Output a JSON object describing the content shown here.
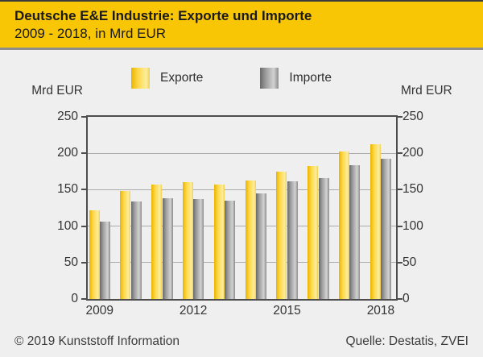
{
  "header": {
    "title": "Deutsche E&E Industrie: Exporte und Importe",
    "subtitle": "2009 - 2018, in Mrd EUR"
  },
  "legend": {
    "items": [
      {
        "label": "Exporte",
        "swatch": "exporte-swatch"
      },
      {
        "label": "Importe",
        "swatch": "importe-swatch"
      }
    ]
  },
  "axis": {
    "unit_left": "Mrd EUR",
    "unit_right": "Mrd EUR"
  },
  "footer": {
    "copyright": "© 2019 Kunststoff Information",
    "source": "Quelle: Destatis, ZVEI"
  },
  "colors": {
    "header_bg": "#F9C606",
    "background": "#EFEFEF",
    "separator": "#8C8C8C",
    "plot_border": "#4D4D4D",
    "gridline": "#ABABAB",
    "text": "#2E2E2E",
    "exporte_gradient": [
      "#E7B400",
      "#FFD94A",
      "#FCEC9F",
      "#F2CF4A"
    ],
    "importe_gradient": [
      "#696969",
      "#9E9E9E",
      "#D2D2D2",
      "#8C8C8C"
    ]
  },
  "chart_data": {
    "type": "bar",
    "title": "Deutsche E&E Industrie: Exporte und Importe",
    "subtitle": "2009 - 2018, in Mrd EUR",
    "categories": [
      2009,
      2010,
      2011,
      2012,
      2013,
      2014,
      2015,
      2016,
      2017,
      2018
    ],
    "series": [
      {
        "name": "Exporte",
        "values": [
          122,
          148,
          157,
          160,
          157,
          163,
          175,
          183,
          202,
          212
        ]
      },
      {
        "name": "Importe",
        "values": [
          106,
          134,
          138,
          137,
          135,
          145,
          161,
          166,
          184,
          192
        ]
      }
    ],
    "ylabel": "Mrd EUR",
    "ylim": [
      0,
      250
    ],
    "yticks": [
      0,
      50,
      100,
      150,
      200,
      250
    ],
    "xtick_labels_shown": [
      "2009",
      "2012",
      "2015",
      "2018"
    ],
    "grid": true,
    "legend_position": "top"
  }
}
